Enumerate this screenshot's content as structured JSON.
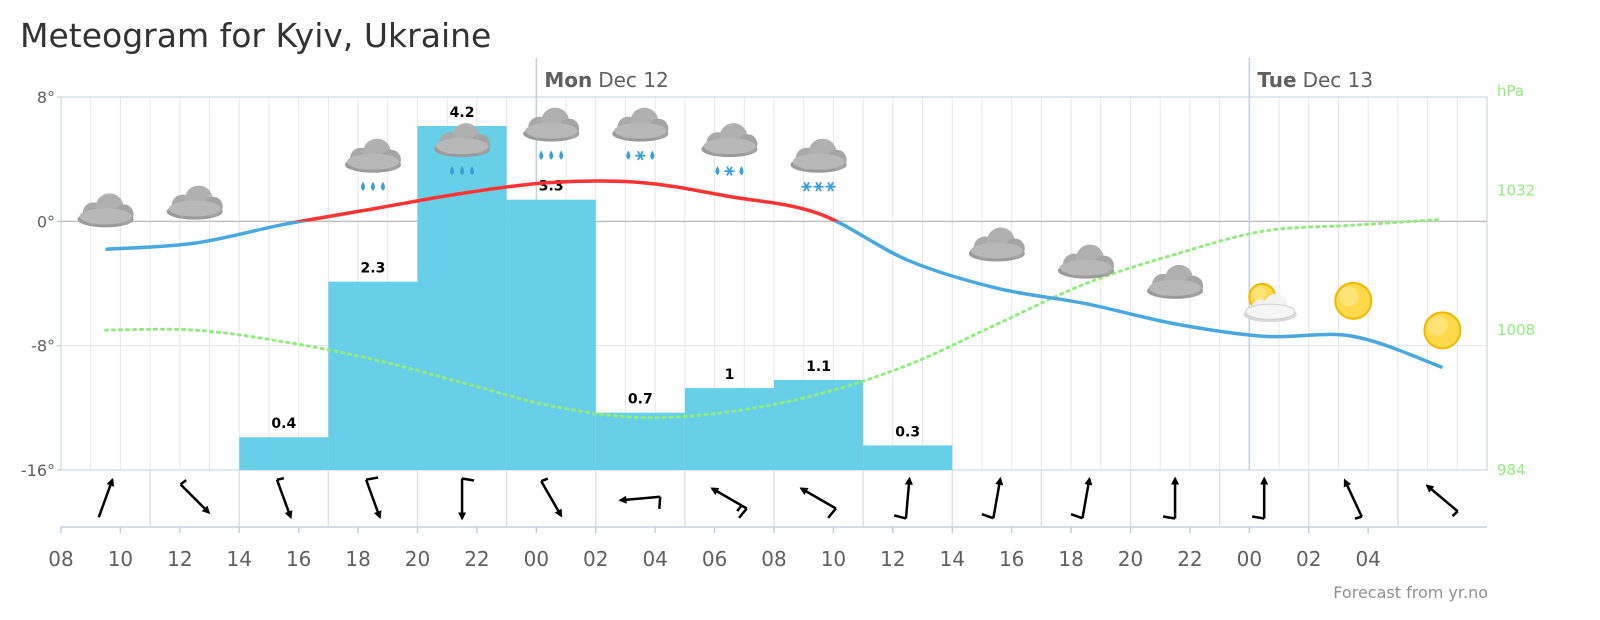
{
  "title": "Meteogram for Kyiv, Ukraine",
  "credit": "Forecast from yr.no",
  "days": [
    {
      "weekday": "Mon",
      "date": "Dec 12",
      "at_hour": 24
    },
    {
      "weekday": "Tue",
      "date": "Dec 13",
      "at_hour": 48
    }
  ],
  "colors": {
    "temp_above_zero": "#ff3333",
    "temp_below_zero": "#4aa8e0",
    "precipitation": "#68cfe8",
    "pressure": "#90ed7d",
    "grid": "#e6e6e6",
    "zero_line": "#c0c0c0",
    "frame": "#c0d0e0"
  },
  "chart_data": {
    "type": "line",
    "time_unit": "hours since 00:00 Dec 11",
    "x_range": [
      8,
      56
    ],
    "x_ticks": [
      "08",
      "10",
      "12",
      "14",
      "16",
      "18",
      "20",
      "22",
      "00",
      "02",
      "04",
      "06",
      "08",
      "10",
      "12",
      "14",
      "16",
      "18",
      "20",
      "22",
      "00",
      "02",
      "04"
    ],
    "y_left": {
      "ticks": [
        "8°",
        "0°",
        "-8°",
        "-16°"
      ],
      "range": [
        -16,
        8
      ],
      "unit": "°C"
    },
    "y_right": {
      "title": "hPa",
      "ticks": [
        "1032",
        "1008",
        "984"
      ],
      "range": [
        984,
        1048
      ]
    },
    "temperature": {
      "x": [
        9.5,
        12.5,
        15.5,
        18.5,
        21.5,
        24.5,
        27.5,
        30.5,
        33.5,
        36.5,
        39.5,
        42.5,
        45.5,
        48.5,
        51.5,
        54.5
      ],
      "y": [
        -1.8,
        -1.4,
        -0.2,
        0.8,
        1.8,
        2.5,
        2.5,
        1.6,
        0.5,
        -2.5,
        -4.3,
        -5.3,
        -6.6,
        -7.4,
        -7.4,
        -9.4
      ]
    },
    "precipitation": {
      "bars": [
        {
          "from": 14,
          "to": 17,
          "value": 0.4
        },
        {
          "from": 17,
          "to": 20,
          "value": 2.3
        },
        {
          "from": 20,
          "to": 23,
          "value": 4.2
        },
        {
          "from": 23,
          "to": 26,
          "value": 3.3
        },
        {
          "from": 26,
          "to": 29,
          "value": 0.7
        },
        {
          "from": 29,
          "to": 32,
          "value": 1
        },
        {
          "from": 32,
          "to": 35,
          "value": 1.1
        },
        {
          "from": 35,
          "to": 38,
          "value": 0.3
        }
      ],
      "labels": [
        "0.4",
        "2.3",
        "4.2",
        "3.3",
        "0.7",
        "1",
        "1.1",
        "0.3"
      ]
    },
    "pressure": {
      "x": [
        9.5,
        12.5,
        15.5,
        18.5,
        21.5,
        24.5,
        27.5,
        30.5,
        33.5,
        36.5,
        39.5,
        42.5,
        45.5,
        48.5,
        51.5,
        54.5
      ],
      "y": [
        1008,
        1008,
        1006,
        1003,
        999,
        995,
        993,
        994,
        997,
        1002,
        1009,
        1016,
        1021,
        1025,
        1026,
        1027
      ]
    },
    "weather_symbols": [
      {
        "x": 9.5,
        "temp": 0,
        "icon": "cloud-icon"
      },
      {
        "x": 12.5,
        "temp": 0.5,
        "icon": "cloud-icon"
      },
      {
        "x": 18.5,
        "temp": 3,
        "icon": "rain-icon"
      },
      {
        "x": 21.5,
        "temp": 4,
        "icon": "rain-icon"
      },
      {
        "x": 24.5,
        "temp": 5,
        "icon": "rain-icon"
      },
      {
        "x": 27.5,
        "temp": 5,
        "icon": "sleet-icon"
      },
      {
        "x": 30.5,
        "temp": 4,
        "icon": "sleet-icon"
      },
      {
        "x": 33.5,
        "temp": 3,
        "icon": "snow-icon"
      },
      {
        "x": 39.5,
        "temp": -2.2,
        "icon": "cloud-icon"
      },
      {
        "x": 42.5,
        "temp": -3.3,
        "icon": "cloud-icon"
      },
      {
        "x": 45.5,
        "temp": -4.6,
        "icon": "cloud-icon"
      },
      {
        "x": 48.5,
        "temp": -5.5,
        "icon": "partly-cloudy-icon"
      },
      {
        "x": 51.5,
        "temp": -5.5,
        "icon": "sun-icon"
      },
      {
        "x": 54.5,
        "temp": -7.4,
        "icon": "sun-icon"
      }
    ],
    "wind_barbs": [
      {
        "x": 9.5,
        "from_deg": 20,
        "speed_kt": 0
      },
      {
        "x": 12.5,
        "from_deg": 135,
        "speed_kt": 5
      },
      {
        "x": 15.5,
        "from_deg": 160,
        "speed_kt": 5
      },
      {
        "x": 18.5,
        "from_deg": 160,
        "speed_kt": 10
      },
      {
        "x": 21.5,
        "from_deg": 180,
        "speed_kt": 10
      },
      {
        "x": 24.5,
        "from_deg": 150,
        "speed_kt": 5
      },
      {
        "x": 27.5,
        "from_deg": 265,
        "speed_kt": 10
      },
      {
        "x": 30.5,
        "from_deg": 300,
        "speed_kt": 15
      },
      {
        "x": 33.5,
        "from_deg": 300,
        "speed_kt": 10
      },
      {
        "x": 36.5,
        "from_deg": 5,
        "speed_kt": 10
      },
      {
        "x": 39.5,
        "from_deg": 10,
        "speed_kt": 10
      },
      {
        "x": 42.5,
        "from_deg": 10,
        "speed_kt": 10
      },
      {
        "x": 45.5,
        "from_deg": 0,
        "speed_kt": 10
      },
      {
        "x": 48.5,
        "from_deg": 0,
        "speed_kt": 10
      },
      {
        "x": 51.5,
        "from_deg": 335,
        "speed_kt": 5
      },
      {
        "x": 54.5,
        "from_deg": 310,
        "speed_kt": 5
      }
    ]
  }
}
